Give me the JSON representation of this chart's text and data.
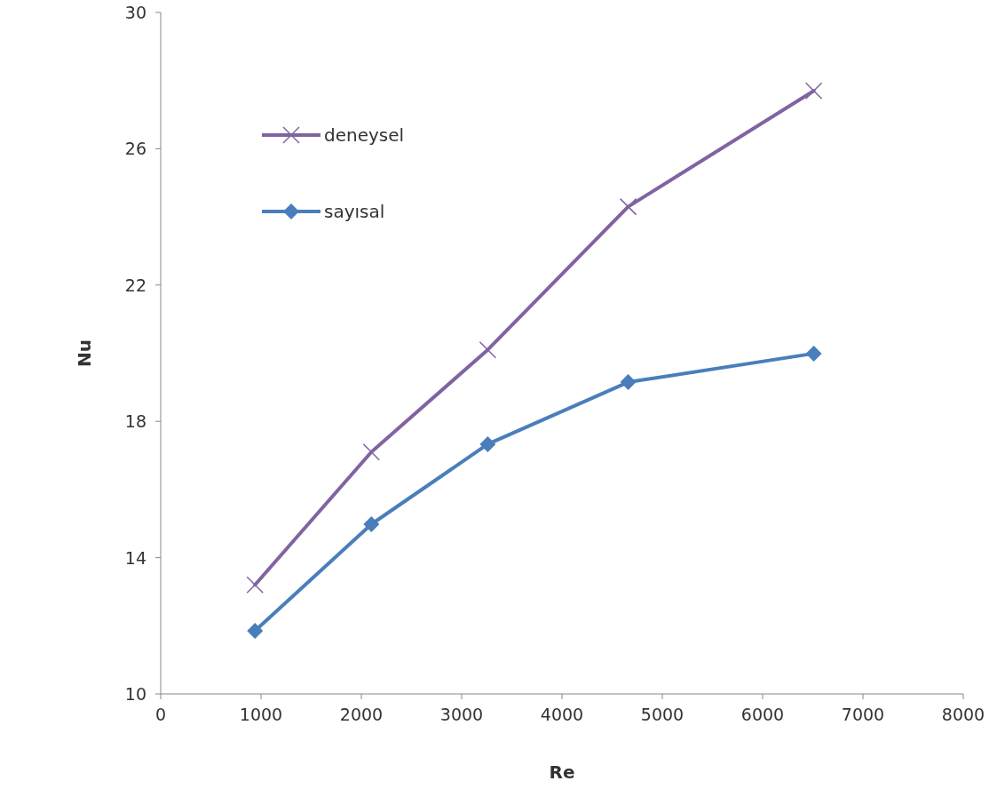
{
  "chart_data": {
    "type": "line",
    "xlabel": "Re",
    "ylabel": "Nu",
    "xlim": [
      0,
      8000
    ],
    "xticks": [
      0,
      1000,
      2000,
      3000,
      4000,
      5000,
      6000,
      7000,
      8000
    ],
    "ylim": [
      10,
      30
    ],
    "yticks": [
      10,
      14,
      18,
      22,
      26,
      30
    ],
    "legend": "top left",
    "grid": false,
    "series": [
      {
        "name": "deneysel",
        "color": "#8064a2",
        "marker": "cross",
        "x": [
          940,
          2100,
          3260,
          4660,
          6510
        ],
        "values": [
          13.2,
          17.1,
          20.1,
          24.3,
          27.7
        ]
      },
      {
        "name": "sayısal",
        "color": "#4a7ebb",
        "marker": "diamond",
        "x": [
          940,
          2100,
          3260,
          4660,
          6510
        ],
        "values": [
          11.85,
          14.98,
          17.33,
          19.15,
          19.99
        ]
      }
    ]
  }
}
